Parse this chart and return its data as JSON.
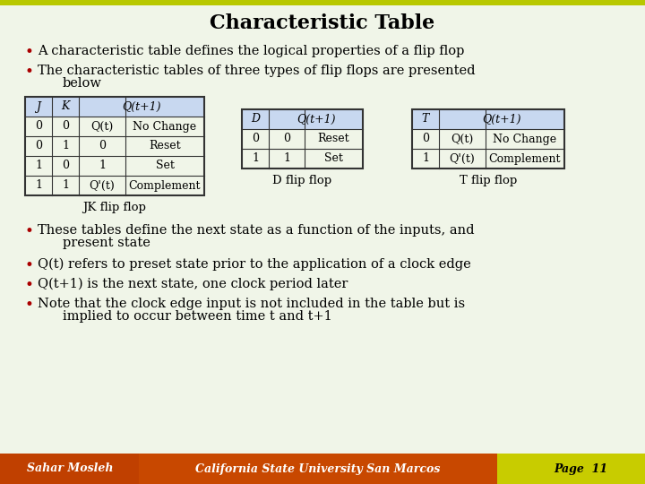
{
  "title": "Characteristic Table",
  "slide_inner_color": "#f0f5e8",
  "slide_outer_color": "#c8d400",
  "bg_color": "#b8c800",
  "header_bg": "#c8d8f0",
  "table_border": "#333333",
  "title_color": "#000000",
  "text_color": "#000000",
  "bullet_color": "#aa0000",
  "footer_left_bg": "#c84000",
  "footer_center_bg": "#c05000",
  "footer_right_bg": "#c8d400",
  "footer_text_white": "#ffffff",
  "footer_text_dark": "#000000",
  "footer_left": "Sahar Mosleh",
  "footer_center": "California State University San Marcos",
  "footer_right": "Page  11",
  "bullet1": "A characteristic table defines the logical properties of a flip flop",
  "bullet2_line1": "The characteristic tables of three types of flip flops are presented",
  "bullet2_line2": "below",
  "bullet3_line1": "These tables define the next state as a function of the inputs, and",
  "bullet3_line2": "present state",
  "bullet4": "Q(t) refers to preset state prior to the application of a clock edge",
  "bullet5": "Q(t+1) is the next state, one clock period later",
  "bullet6_line1": "Note that the clock edge input is not included in the table but is",
  "bullet6_line2": "implied to occur between time t and t+1",
  "jk_label": "JK flip flop",
  "d_label": "D flip flop",
  "t_label": "T flip flop"
}
